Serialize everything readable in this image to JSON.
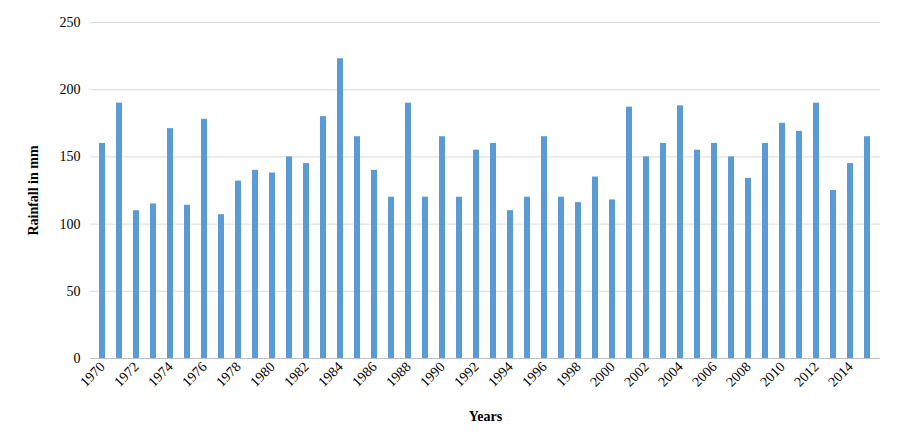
{
  "chart_data": {
    "type": "bar",
    "x_label": "Years",
    "y_label": "Rainfall in mm",
    "categories": [
      "1970",
      null,
      "1972",
      null,
      "1974",
      null,
      "1976",
      null,
      "1978",
      null,
      "1980",
      null,
      "1982",
      null,
      "1984",
      null,
      "1986",
      null,
      "1988",
      null,
      "1990",
      null,
      "1992",
      null,
      "1994",
      null,
      "1996",
      null,
      "1998",
      null,
      "2000",
      null,
      "2002",
      null,
      "2004",
      null,
      "2006",
      null,
      "2008",
      null,
      "2010",
      null,
      "2012",
      null,
      "2014",
      null
    ],
    "values": [
      160,
      190,
      110,
      115,
      171,
      114,
      178,
      107,
      132,
      140,
      138,
      150,
      145,
      180,
      223,
      165,
      140,
      120,
      190,
      120,
      165,
      120,
      155,
      160,
      110,
      120,
      165,
      120,
      116,
      135,
      118,
      187,
      150,
      160,
      188,
      155,
      160,
      150,
      134,
      160,
      175,
      169,
      190,
      125,
      145,
      165
    ],
    "color": "#5b9bd5",
    "ylim": [
      0,
      250
    ],
    "yticks": [
      0,
      50,
      100,
      150,
      200,
      250
    ],
    "grid": true
  }
}
